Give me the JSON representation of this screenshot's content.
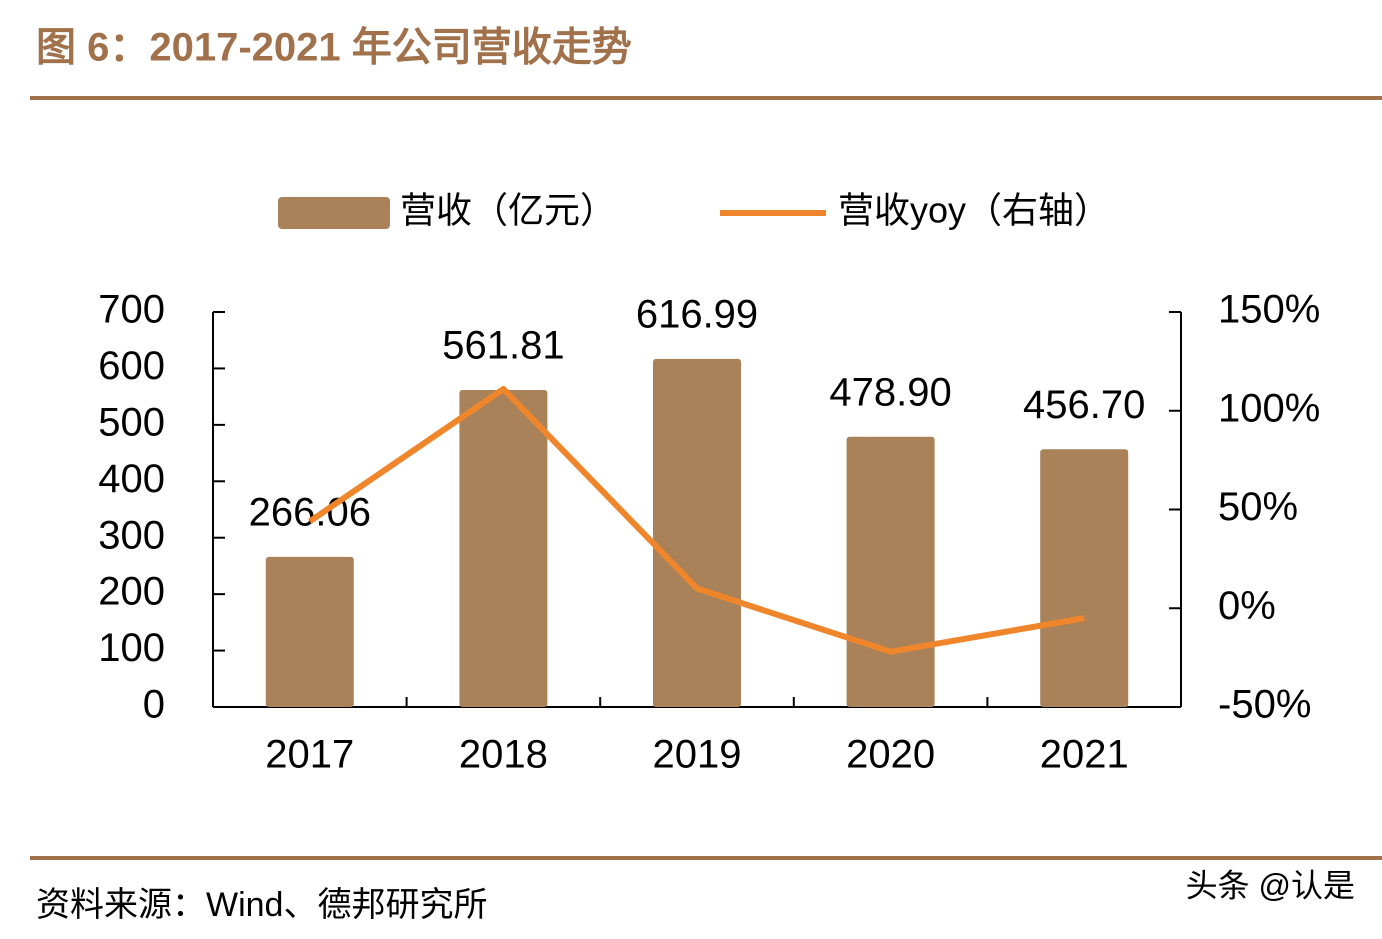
{
  "title": "图 6：2017-2021 年公司营收走势",
  "source": "资料来源：Wind、德邦研究所",
  "watermark": "头条 @认是",
  "chart_data": {
    "type": "bar",
    "categories": [
      "2017",
      "2018",
      "2019",
      "2020",
      "2021"
    ],
    "series": [
      {
        "name": "营收（亿元）",
        "type": "bar",
        "color": "#a9825a",
        "values": [
          266.06,
          561.81,
          616.99,
          478.9,
          456.7
        ],
        "value_labels": [
          "266.06",
          "561.81",
          "616.99",
          "478.90",
          "456.70"
        ]
      },
      {
        "name": "营收yoy（右轴）",
        "type": "line",
        "axis": "y2",
        "color": "#f0862c",
        "values": [
          44,
          111,
          10,
          -22,
          -5
        ]
      }
    ],
    "ylim": [
      0,
      700
    ],
    "yticks": [
      0,
      100,
      200,
      300,
      400,
      500,
      600,
      700
    ],
    "y2lim": [
      -50,
      150
    ],
    "y2ticks": [
      {
        "value": -50,
        "label": "-50%"
      },
      {
        "value": 0,
        "label": "0%"
      },
      {
        "value": 50,
        "label": "50%"
      },
      {
        "value": 100,
        "label": "100%"
      },
      {
        "value": 150,
        "label": "150%"
      }
    ]
  }
}
